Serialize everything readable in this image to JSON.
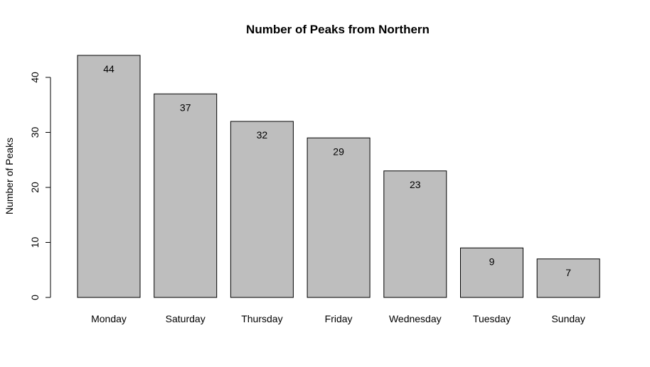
{
  "chart_data": {
    "type": "bar",
    "title": "Number of Peaks from Northern",
    "xlabel": "",
    "ylabel": "Number of Peaks",
    "categories": [
      "Monday",
      "Saturday",
      "Thursday",
      "Friday",
      "Wednesday",
      "Tuesday",
      "Sunday"
    ],
    "values": [
      44,
      37,
      32,
      29,
      23,
      9,
      7
    ],
    "data_labels": [
      "44",
      "37",
      "32",
      "29",
      "23",
      "9",
      "7"
    ],
    "ylim": [
      0,
      44
    ],
    "y_ticks": [
      0,
      10,
      20,
      30,
      40
    ],
    "y_tick_labels": [
      "0",
      "10",
      "20",
      "30",
      "40"
    ],
    "bar_color": "#bebebe",
    "bar_border_color": "#000000",
    "grid": false,
    "legend": "none"
  }
}
